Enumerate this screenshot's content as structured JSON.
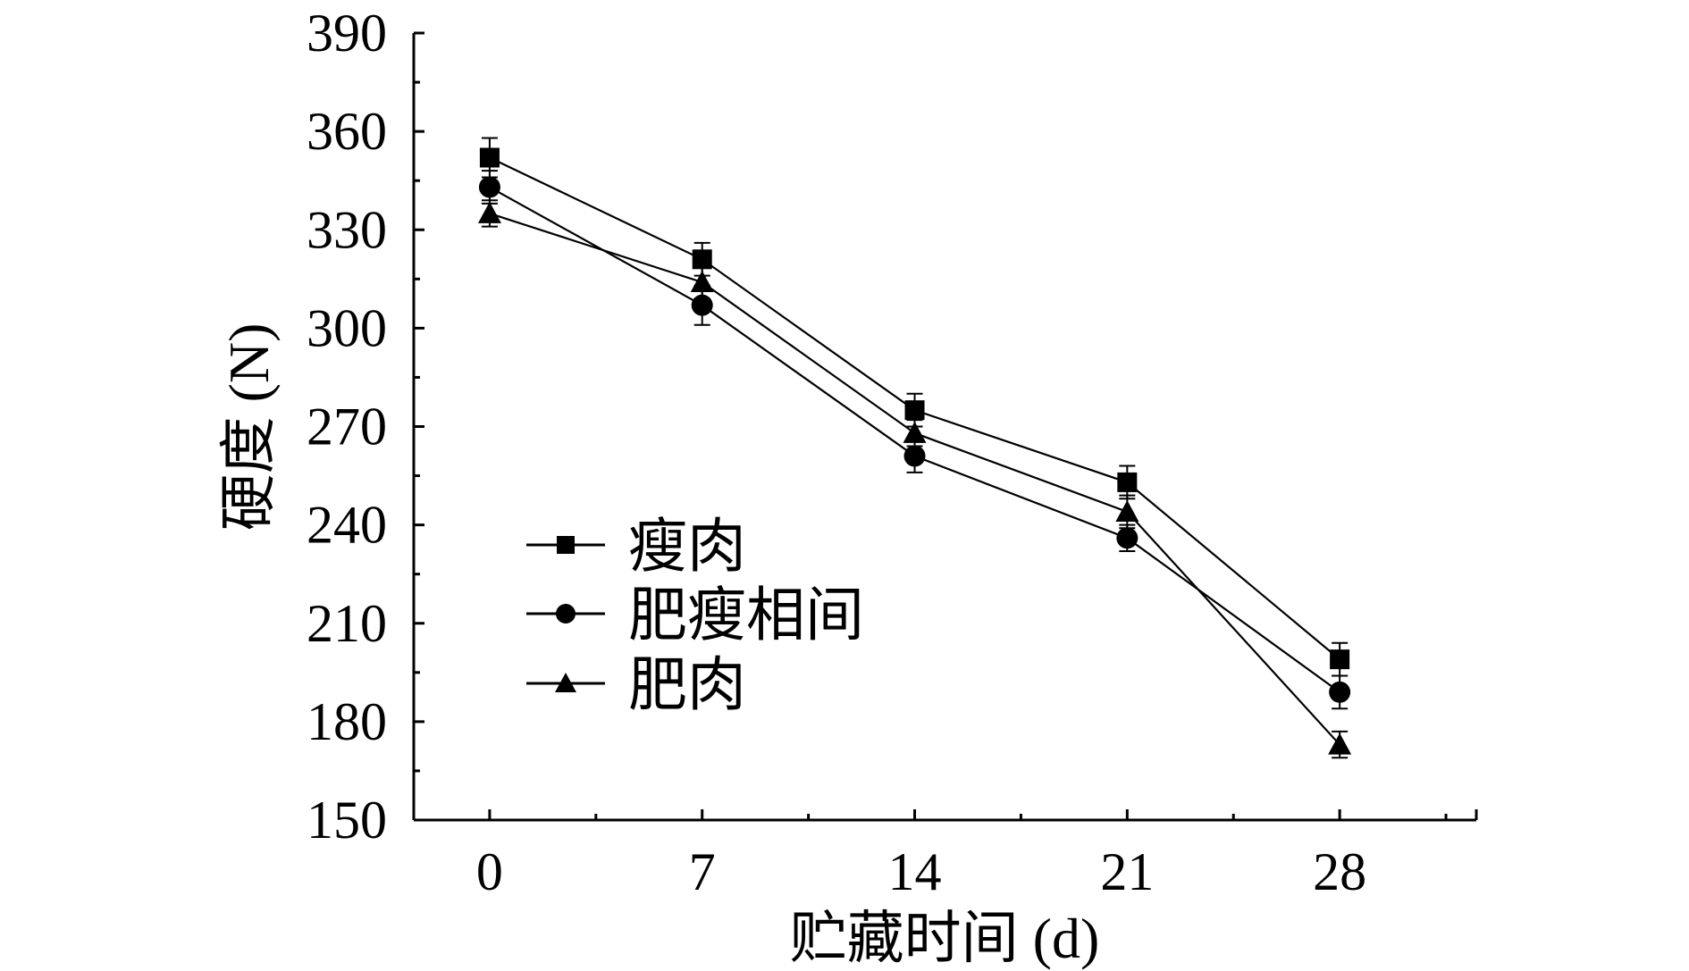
{
  "chart_data": {
    "type": "line",
    "title": "",
    "xlabel": "贮藏时间 (d)",
    "ylabel": "硬度 (N)",
    "x": [
      0,
      7,
      14,
      21,
      28
    ],
    "xlim": [
      -2.5,
      32.5
    ],
    "ylim": [
      150,
      390
    ],
    "xticks": [
      "0",
      "7",
      "14",
      "21",
      "28"
    ],
    "yticks": [
      "150",
      "180",
      "210",
      "240",
      "270",
      "300",
      "330",
      "360",
      "390"
    ],
    "grid": false,
    "legend_position": "lower-left",
    "series": [
      {
        "name": "瘦肉",
        "marker": "square",
        "values": [
          352,
          321,
          275,
          253,
          199
        ],
        "errors": [
          6,
          5,
          5,
          5,
          5
        ]
      },
      {
        "name": "肥瘦相间",
        "marker": "circle",
        "values": [
          343,
          307,
          261,
          236,
          189
        ],
        "errors": [
          5,
          6,
          5,
          4,
          5
        ]
      },
      {
        "name": "肥肉",
        "marker": "triangle",
        "values": [
          335,
          314,
          268,
          244,
          173
        ],
        "errors": [
          4,
          5,
          4,
          5,
          4
        ]
      }
    ],
    "color": "#000000"
  }
}
